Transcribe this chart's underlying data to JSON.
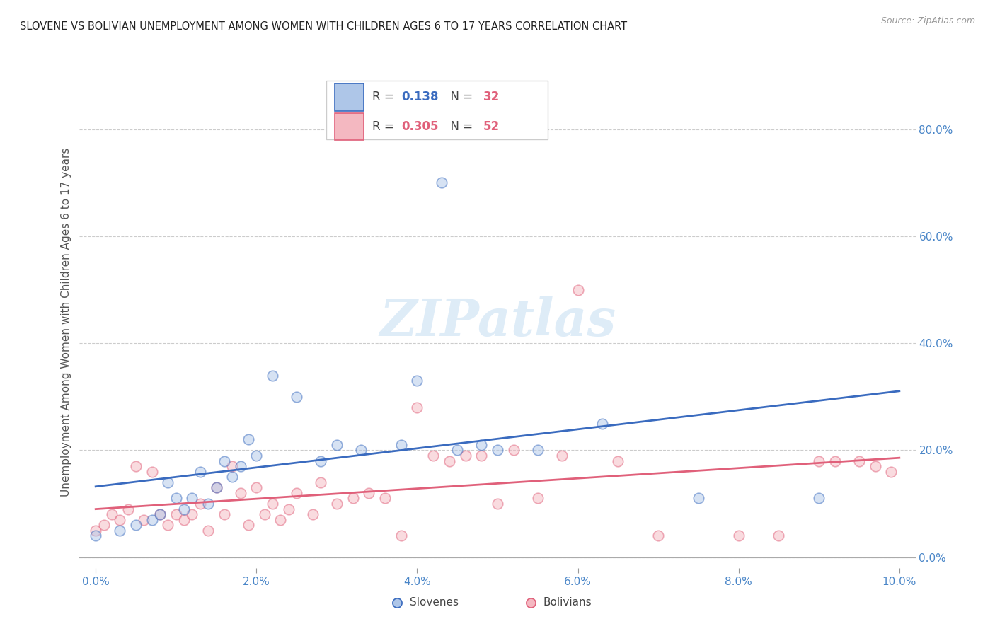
{
  "title": "SLOVENE VS BOLIVIAN UNEMPLOYMENT AMONG WOMEN WITH CHILDREN AGES 6 TO 17 YEARS CORRELATION CHART",
  "source": "Source: ZipAtlas.com",
  "ylabel": "Unemployment Among Women with Children Ages 6 to 17 years",
  "xlim": [
    -0.002,
    0.102
  ],
  "ylim": [
    -0.02,
    0.9
  ],
  "xticks": [
    0.0,
    0.02,
    0.04,
    0.06,
    0.08,
    0.1
  ],
  "xticklabels": [
    "0.0%",
    "2.0%",
    "4.0%",
    "6.0%",
    "8.0%",
    "10.0%"
  ],
  "yticks_right": [
    0.0,
    0.2,
    0.4,
    0.6,
    0.8
  ],
  "yticklabels_right": [
    "0.0%",
    "20.0%",
    "40.0%",
    "60.0%",
    "80.0%"
  ],
  "slovene_color": "#aec6e8",
  "bolivian_color": "#f4b8c1",
  "slovene_line_color": "#3a6bbf",
  "bolivian_line_color": "#e0607a",
  "legend_slovene_r": "0.138",
  "legend_slovene_n": "32",
  "legend_bolivian_r": "0.305",
  "legend_bolivian_n": "52",
  "watermark": "ZIPatlas",
  "watermark_color": "#d0e4f5",
  "slovene_x": [
    0.0,
    0.003,
    0.005,
    0.007,
    0.008,
    0.009,
    0.01,
    0.011,
    0.012,
    0.013,
    0.014,
    0.015,
    0.016,
    0.017,
    0.018,
    0.019,
    0.02,
    0.022,
    0.025,
    0.028,
    0.03,
    0.033,
    0.038,
    0.04,
    0.043,
    0.045,
    0.048,
    0.05,
    0.055,
    0.063,
    0.075,
    0.09
  ],
  "slovene_y": [
    0.04,
    0.05,
    0.06,
    0.07,
    0.08,
    0.14,
    0.11,
    0.09,
    0.11,
    0.16,
    0.1,
    0.13,
    0.18,
    0.15,
    0.17,
    0.22,
    0.19,
    0.34,
    0.3,
    0.18,
    0.21,
    0.2,
    0.21,
    0.33,
    0.7,
    0.2,
    0.21,
    0.2,
    0.2,
    0.25,
    0.11,
    0.11
  ],
  "bolivian_x": [
    0.0,
    0.001,
    0.002,
    0.003,
    0.004,
    0.005,
    0.006,
    0.007,
    0.008,
    0.009,
    0.01,
    0.011,
    0.012,
    0.013,
    0.014,
    0.015,
    0.016,
    0.017,
    0.018,
    0.019,
    0.02,
    0.021,
    0.022,
    0.023,
    0.024,
    0.025,
    0.027,
    0.028,
    0.03,
    0.032,
    0.034,
    0.036,
    0.038,
    0.04,
    0.042,
    0.044,
    0.046,
    0.048,
    0.05,
    0.052,
    0.055,
    0.058,
    0.06,
    0.065,
    0.07,
    0.08,
    0.085,
    0.09,
    0.092,
    0.095,
    0.097,
    0.099
  ],
  "bolivian_y": [
    0.05,
    0.06,
    0.08,
    0.07,
    0.09,
    0.17,
    0.07,
    0.16,
    0.08,
    0.06,
    0.08,
    0.07,
    0.08,
    0.1,
    0.05,
    0.13,
    0.08,
    0.17,
    0.12,
    0.06,
    0.13,
    0.08,
    0.1,
    0.07,
    0.09,
    0.12,
    0.08,
    0.14,
    0.1,
    0.11,
    0.12,
    0.11,
    0.04,
    0.28,
    0.19,
    0.18,
    0.19,
    0.19,
    0.1,
    0.2,
    0.11,
    0.19,
    0.5,
    0.18,
    0.04,
    0.04,
    0.04,
    0.18,
    0.18,
    0.18,
    0.17,
    0.16
  ],
  "background_color": "#ffffff",
  "grid_color": "#cccccc",
  "title_color": "#222222",
  "axis_label_color": "#555555",
  "tick_label_color": "#4a86c8",
  "marker_size": 110,
  "marker_alpha": 0.5
}
